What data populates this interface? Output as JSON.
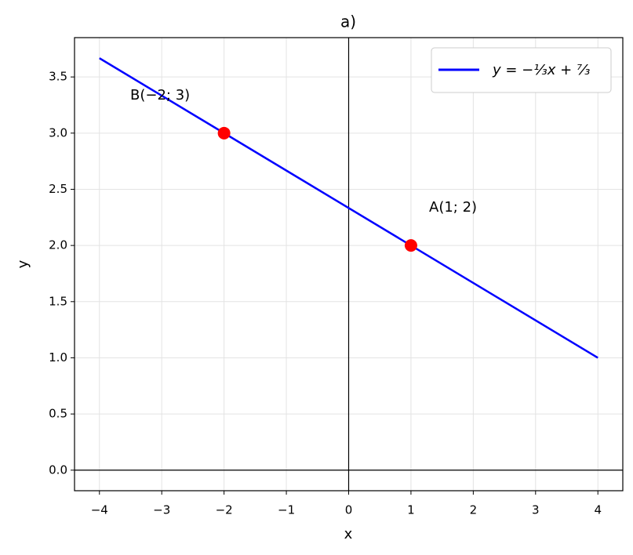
{
  "chart_data": {
    "type": "line",
    "title": "a)",
    "x_label": "x",
    "y_label": "y",
    "series": [
      {
        "name": "y = −¹⁄₃x + ⁷⁄₃",
        "color": "#0000ff",
        "x": [
          -4,
          4
        ],
        "values": [
          3.667,
          1.0
        ]
      }
    ],
    "points": {
      "color": "#ff0000",
      "x": [
        1,
        -2
      ],
      "values": [
        2,
        3
      ]
    },
    "annotations": [
      "A(1; 2)",
      "B(−2; 3)"
    ],
    "xlim": [
      -4.4,
      4.4
    ],
    "ylim": [
      -0.183,
      3.85
    ],
    "xticks": [
      {
        "value": -4,
        "label": "−4"
      },
      {
        "value": -3,
        "label": "−3"
      },
      {
        "value": -2,
        "label": "−2"
      },
      {
        "value": -1,
        "label": "−1"
      },
      0,
      1,
      2,
      3,
      4
    ],
    "yticks": [
      {
        "value": 0,
        "label": "0.0"
      },
      0.5,
      {
        "value": 1,
        "label": "1.0"
      },
      1.5,
      {
        "value": 2,
        "label": "2.0"
      },
      2.5,
      {
        "value": 3,
        "label": "3.0"
      },
      3.5
    ],
    "grid": true,
    "legend": "upper right"
  }
}
